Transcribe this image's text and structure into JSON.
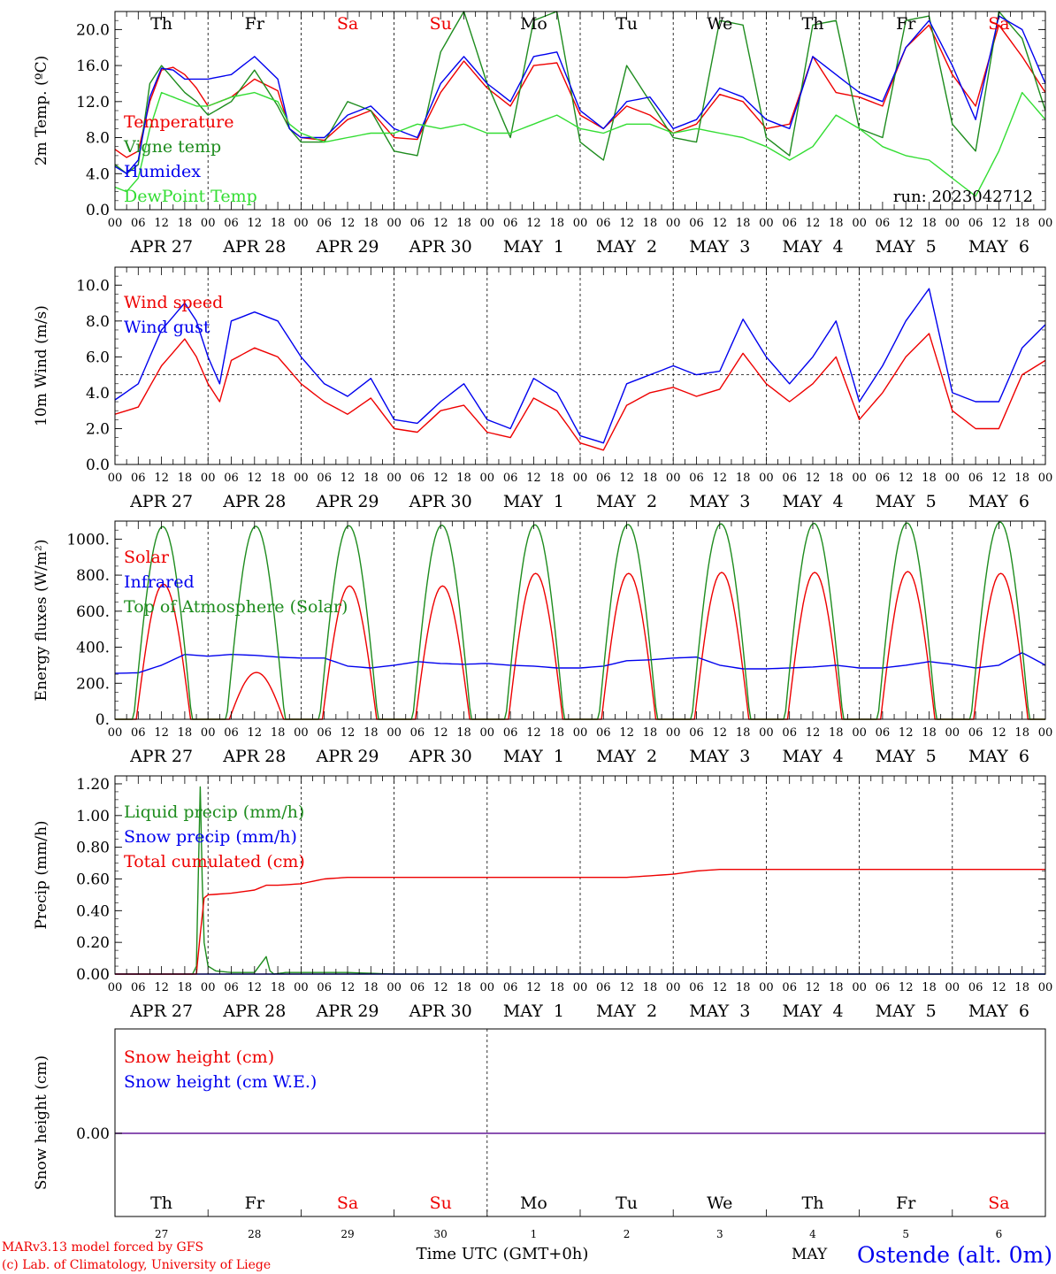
{
  "run_label": "run: 2023042712",
  "station_label": "Ostende (alt. 0m)",
  "credits": [
    "MARv3.13 model forced by GFS",
    "(c) Lab. of Climatology, University of Liege"
  ],
  "xlabel": "Time UTC (GMT+0h)",
  "bottom_month": "MAY",
  "days": {
    "weekday": [
      "Th",
      "Fr",
      "Sa",
      "Su",
      "Mo",
      "Tu",
      "We",
      "Th",
      "Fr",
      "Sa"
    ],
    "weekend": [
      false,
      false,
      true,
      true,
      false,
      false,
      false,
      false,
      false,
      true
    ],
    "date_labels": [
      "APR 27",
      "APR 28",
      "APR 29",
      "APR 30",
      "MAY  1",
      "MAY  2",
      "MAY  3",
      "MAY  4",
      "MAY  5",
      "MAY  6"
    ],
    "day_numbers": [
      "27",
      "28",
      "29",
      "30",
      "1",
      "2",
      "3",
      "4",
      "5",
      "6"
    ],
    "hour_ticks": [
      "00",
      "06",
      "12",
      "18"
    ],
    "final_hour": "00"
  },
  "colors": {
    "red": "#ee0000",
    "darkgreen": "#1e8c1e",
    "blue": "#0000ee",
    "lightgreen": "#33dd33",
    "purple": "#7a3aa8"
  },
  "chart_data": [
    {
      "id": "temperature",
      "type": "line",
      "ylabel": "2m Temp. (ºC)",
      "ylim": [
        0,
        22
      ],
      "yticks": [
        "0.0",
        "4.0",
        "8.0",
        "12.0",
        "16.0",
        "20.0"
      ],
      "x_unit": "hours since APR 27 00 UTC",
      "series": [
        {
          "name": "Temperature",
          "color": "red",
          "x": [
            0,
            3,
            6,
            9,
            12,
            15,
            18,
            21,
            24,
            30,
            36,
            42,
            45,
            48,
            54,
            60,
            66,
            72,
            78,
            84,
            90,
            96,
            102,
            108,
            114,
            120,
            126,
            132,
            138,
            144,
            150,
            156,
            162,
            168,
            174,
            180,
            186,
            192,
            198,
            204,
            210,
            216,
            222,
            228,
            234,
            240
          ],
          "y": [
            6.7,
            5.8,
            6.5,
            12.0,
            15.5,
            15.8,
            15.0,
            13.5,
            11.5,
            12.5,
            14.5,
            13.2,
            9.0,
            8.0,
            7.7,
            10.0,
            11.0,
            8.0,
            7.8,
            13.0,
            16.5,
            13.5,
            11.5,
            16.0,
            16.3,
            10.5,
            9.0,
            11.5,
            10.5,
            8.5,
            9.5,
            12.8,
            12.0,
            9.0,
            9.5,
            17.0,
            13.0,
            12.5,
            11.5,
            18.0,
            20.5,
            15.0,
            11.5,
            20.5,
            17.0,
            13.0
          ]
        },
        {
          "name": "Vigne temp",
          "color": "darkgreen",
          "x": [
            0,
            3,
            6,
            9,
            12,
            15,
            18,
            21,
            24,
            30,
            36,
            42,
            45,
            48,
            54,
            60,
            66,
            72,
            78,
            84,
            90,
            96,
            102,
            108,
            114,
            120,
            126,
            132,
            138,
            144,
            150,
            156,
            162,
            168,
            174,
            180,
            186,
            192,
            198,
            204,
            210,
            216,
            222,
            228,
            234,
            240
          ],
          "y": [
            5.0,
            4.0,
            5.0,
            14.0,
            16.0,
            14.5,
            13.0,
            12.0,
            10.5,
            12.0,
            15.5,
            11.5,
            9.0,
            7.5,
            7.5,
            12.0,
            11.0,
            6.5,
            6.0,
            17.5,
            22.0,
            14.0,
            8.0,
            21.0,
            22.0,
            7.5,
            5.5,
            16.0,
            12.0,
            8.0,
            7.5,
            21.0,
            20.5,
            8.0,
            6.0,
            20.5,
            21.0,
            9.0,
            8.0,
            21.0,
            21.5,
            9.5,
            6.5,
            22.0,
            19.0,
            11.0
          ]
        },
        {
          "name": "Humidex",
          "color": "blue",
          "x": [
            0,
            3,
            6,
            9,
            12,
            15,
            18,
            21,
            24,
            30,
            36,
            42,
            45,
            48,
            54,
            60,
            66,
            72,
            78,
            84,
            90,
            96,
            102,
            108,
            114,
            120,
            126,
            132,
            138,
            144,
            150,
            156,
            162,
            168,
            174,
            180,
            186,
            192,
            198,
            204,
            210,
            216,
            222,
            228,
            234,
            240
          ],
          "y": [
            4.8,
            4.0,
            5.5,
            12.5,
            15.7,
            15.5,
            14.5,
            14.5,
            14.5,
            15.0,
            17.0,
            14.5,
            9.0,
            8.0,
            8.0,
            10.5,
            11.5,
            9.0,
            8.0,
            14.0,
            17.0,
            14.0,
            12.0,
            17.0,
            17.5,
            11.0,
            9.0,
            12.0,
            12.5,
            9.0,
            10.0,
            13.5,
            12.5,
            10.0,
            9.0,
            17.0,
            15.0,
            13.0,
            12.0,
            18.0,
            21.0,
            16.0,
            10.0,
            21.5,
            20.0,
            14.0
          ]
        },
        {
          "name": "DewPoint Temp",
          "color": "lightgreen",
          "x": [
            0,
            3,
            6,
            9,
            12,
            15,
            18,
            21,
            24,
            30,
            36,
            42,
            45,
            48,
            54,
            60,
            66,
            72,
            78,
            84,
            90,
            96,
            102,
            108,
            114,
            120,
            126,
            132,
            138,
            144,
            150,
            156,
            162,
            168,
            174,
            180,
            186,
            192,
            198,
            204,
            210,
            216,
            222,
            228,
            234,
            240
          ],
          "y": [
            2.5,
            2.0,
            3.5,
            9.0,
            13.0,
            12.5,
            12.0,
            11.5,
            11.5,
            12.5,
            13.0,
            12.0,
            9.5,
            8.5,
            7.5,
            8.0,
            8.5,
            8.5,
            9.5,
            9.0,
            9.5,
            8.5,
            8.5,
            9.5,
            10.5,
            9.0,
            8.5,
            9.5,
            9.5,
            8.5,
            9.0,
            8.5,
            8.0,
            7.0,
            5.5,
            7.0,
            10.5,
            9.0,
            7.0,
            6.0,
            5.5,
            3.5,
            1.5,
            6.5,
            13.0,
            10.0
          ]
        }
      ]
    },
    {
      "id": "wind",
      "type": "line",
      "ylabel": "10m Wind (m/s)",
      "ylim": [
        0,
        11
      ],
      "yticks": [
        "0.0",
        "2.0",
        "4.0",
        "6.0",
        "8.0",
        "10.0"
      ],
      "reference_line": 5.0,
      "series": [
        {
          "name": "Wind speed",
          "color": "red",
          "x": [
            0,
            6,
            12,
            18,
            21,
            24,
            27,
            30,
            36,
            42,
            48,
            54,
            60,
            66,
            72,
            78,
            84,
            90,
            96,
            102,
            108,
            114,
            120,
            126,
            132,
            138,
            144,
            150,
            156,
            162,
            168,
            174,
            180,
            186,
            192,
            198,
            204,
            210,
            216,
            222,
            228,
            234,
            240
          ],
          "y": [
            2.8,
            3.2,
            5.5,
            7.0,
            6.0,
            4.5,
            3.5,
            5.8,
            6.5,
            6.0,
            4.5,
            3.5,
            2.8,
            3.7,
            2.0,
            1.8,
            3.0,
            3.3,
            1.8,
            1.5,
            3.7,
            3.0,
            1.2,
            0.8,
            3.3,
            4.0,
            4.3,
            3.8,
            4.2,
            6.2,
            4.5,
            3.5,
            4.5,
            6.0,
            2.5,
            4.0,
            6.0,
            7.3,
            3.0,
            2.0,
            2.0,
            5.0,
            5.8
          ]
        },
        {
          "name": "Wind gust",
          "color": "blue",
          "x": [
            0,
            6,
            12,
            18,
            21,
            24,
            27,
            30,
            36,
            42,
            48,
            54,
            60,
            66,
            72,
            78,
            84,
            90,
            96,
            102,
            108,
            114,
            120,
            126,
            132,
            138,
            144,
            150,
            156,
            162,
            168,
            174,
            180,
            186,
            192,
            198,
            204,
            210,
            216,
            222,
            228,
            234,
            240
          ],
          "y": [
            3.6,
            4.5,
            7.5,
            9.0,
            8.0,
            6.0,
            4.5,
            8.0,
            8.5,
            8.0,
            6.0,
            4.5,
            3.8,
            4.8,
            2.5,
            2.3,
            3.5,
            4.5,
            2.5,
            2.0,
            4.8,
            4.0,
            1.6,
            1.2,
            4.5,
            5.0,
            5.5,
            5.0,
            5.2,
            8.1,
            6.0,
            4.5,
            6.0,
            8.0,
            3.5,
            5.5,
            8.0,
            9.8,
            4.0,
            3.5,
            3.5,
            6.5,
            7.8
          ]
        }
      ]
    },
    {
      "id": "energy",
      "type": "line",
      "ylabel": "Energy fluxes (W/m²)",
      "ylim": [
        0,
        1100
      ],
      "yticks": [
        "0.",
        "200.",
        "400.",
        "600.",
        "800.",
        "1000."
      ],
      "series": [
        {
          "name": "Solar",
          "color": "red",
          "diurnal": true,
          "sunrise": 5.5,
          "sunset": 19.5,
          "peaks": [
            750,
            260,
            740,
            740,
            810,
            810,
            815,
            815,
            820,
            810
          ]
        },
        {
          "name": "Infrared",
          "color": "blue",
          "x": [
            0,
            6,
            12,
            18,
            24,
            30,
            36,
            42,
            48,
            54,
            60,
            66,
            72,
            78,
            84,
            90,
            96,
            102,
            108,
            114,
            120,
            126,
            132,
            138,
            144,
            150,
            156,
            162,
            168,
            174,
            180,
            186,
            192,
            198,
            204,
            210,
            216,
            222,
            228,
            234,
            240
          ],
          "y": [
            255,
            258,
            300,
            360,
            350,
            360,
            355,
            345,
            340,
            340,
            295,
            285,
            300,
            320,
            310,
            305,
            310,
            300,
            295,
            285,
            285,
            295,
            325,
            330,
            340,
            345,
            300,
            280,
            280,
            285,
            290,
            300,
            285,
            285,
            300,
            320,
            305,
            285,
            300,
            370,
            300
          ]
        },
        {
          "name": "Top of Atmosphere (Solar)",
          "color": "darkgreen",
          "diurnal": true,
          "sunrise": 4.8,
          "sunset": 19.8,
          "peaks": [
            1070,
            1072,
            1075,
            1078,
            1080,
            1082,
            1085,
            1088,
            1090,
            1095
          ]
        }
      ]
    },
    {
      "id": "precip",
      "type": "line",
      "ylabel": "Precip (mm/h)",
      "ylim": [
        0,
        1.25
      ],
      "yticks": [
        "0.00",
        "0.20",
        "0.40",
        "0.60",
        "0.80",
        "1.00",
        "1.20"
      ],
      "series": [
        {
          "name": "Liquid precip (mm/h)",
          "color": "darkgreen",
          "x": [
            0,
            20,
            21,
            22,
            22.5,
            23,
            24,
            26,
            30,
            36,
            39,
            40,
            41,
            44,
            48,
            60,
            72,
            240
          ],
          "y": [
            0,
            0,
            0.05,
            1.18,
            0.6,
            0.2,
            0.05,
            0.02,
            0.01,
            0.01,
            0.11,
            0.02,
            0,
            0.01,
            0.01,
            0.01,
            0,
            0
          ]
        },
        {
          "name": "Snow precip (mm/h)",
          "color": "blue",
          "x": [
            0,
            240
          ],
          "y": [
            0,
            0
          ]
        },
        {
          "name": "Total cumulated (cm)",
          "color": "red",
          "x": [
            0,
            21,
            22,
            23,
            24,
            30,
            36,
            39,
            42,
            48,
            54,
            60,
            66,
            72,
            120,
            132,
            138,
            144,
            150,
            156,
            168,
            240
          ],
          "y": [
            0,
            0,
            0.25,
            0.48,
            0.5,
            0.51,
            0.53,
            0.56,
            0.56,
            0.57,
            0.6,
            0.61,
            0.61,
            0.61,
            0.61,
            0.61,
            0.62,
            0.63,
            0.65,
            0.66,
            0.66,
            0.66
          ]
        }
      ]
    },
    {
      "id": "snow",
      "type": "line",
      "ylabel": "Snow height (cm)",
      "yticks": [
        "0.00"
      ],
      "series": [
        {
          "name": "Snow height (cm)",
          "color": "red",
          "x": [
            0,
            240
          ],
          "y": [
            0,
            0
          ]
        },
        {
          "name": "Snow height (cm W.E.)",
          "color": "blue",
          "x": [
            0,
            240
          ],
          "y": [
            0,
            0
          ]
        }
      ]
    }
  ]
}
